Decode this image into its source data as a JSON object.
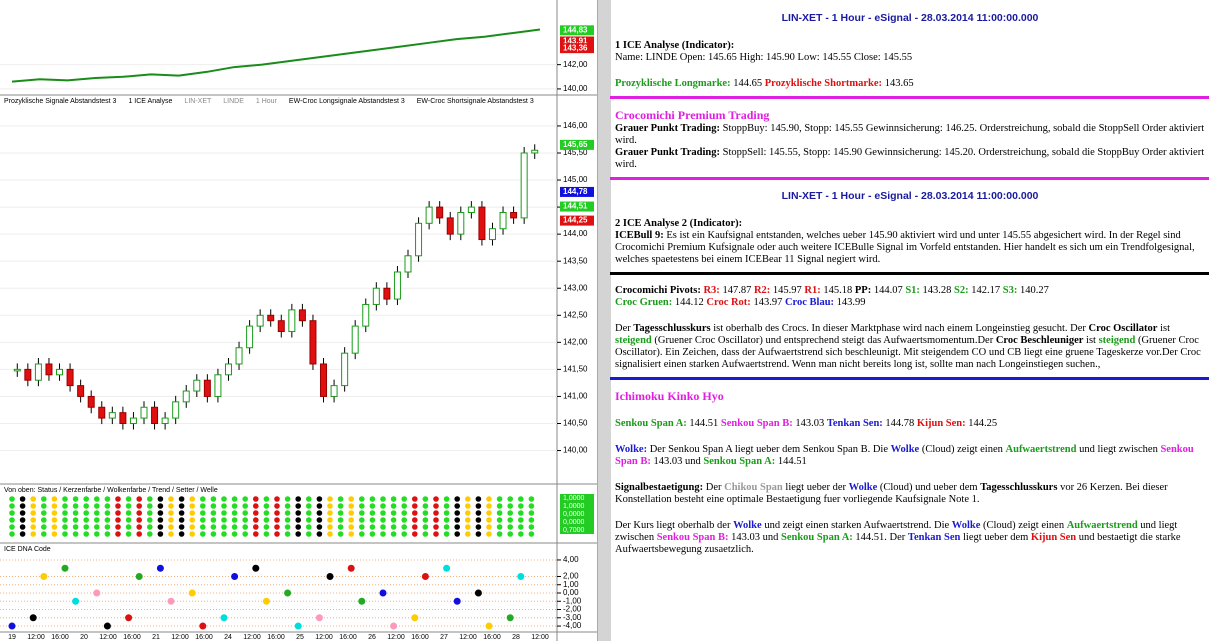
{
  "chart_data": [
    {
      "type": "line",
      "ylim": [
        139.58,
        147.33
      ],
      "yticks": [
        {
          "value": 142,
          "label": "142,00"
        },
        {
          "value": 140,
          "label": "140,00"
        }
      ],
      "values": [
        140.6,
        140.8,
        140.7,
        140.9,
        141.0,
        141.2,
        141.1,
        141.4,
        141.8,
        142.0,
        142.3,
        142.6,
        142.9,
        143.2,
        143.5,
        143.8,
        144.1,
        144.3,
        144.6,
        144.9
      ],
      "color": "#1a8c1a",
      "markers": [
        {
          "value": 144.83,
          "label": "144,83",
          "color": "#22cc22"
        },
        {
          "value": 143.91,
          "label": "143,91",
          "color": "#dd1111"
        },
        {
          "value": 143.36,
          "label": "143,36",
          "color": "#dd1111"
        }
      ]
    },
    {
      "type": "candle",
      "indicator_labels": [
        "Prozyklische Signale Abstandstest 3",
        "1 ICE Analyse",
        "LIN-XET",
        "LINDE",
        "1 Hour",
        "EW-Croc Longsignale Abstandstest 3",
        "EW-Croc Shortsignale Abstandstest 3"
      ],
      "ylim": [
        139.4,
        146.35
      ],
      "yticks": [
        {
          "value": 146,
          "label": "146,00"
        },
        {
          "value": 145.5,
          "label": "145,50"
        },
        {
          "value": 145,
          "label": "145,00"
        },
        {
          "value": 144.5,
          "label": "144,50"
        },
        {
          "value": 144,
          "label": "144,00"
        },
        {
          "value": 143.5,
          "label": "143,50"
        },
        {
          "value": 143,
          "label": "143,00"
        },
        {
          "value": 142.5,
          "label": "142,50"
        },
        {
          "value": 142,
          "label": "142,00"
        },
        {
          "value": 141.5,
          "label": "141,50"
        },
        {
          "value": 141,
          "label": "141,00"
        },
        {
          "value": 140.5,
          "label": "140,50"
        },
        {
          "value": 140,
          "label": "140,00"
        }
      ],
      "values": [
        141.5,
        141.3,
        141.6,
        141.4,
        141.5,
        141.2,
        141.0,
        140.8,
        140.6,
        140.7,
        140.5,
        140.6,
        140.8,
        140.5,
        140.6,
        140.9,
        141.1,
        141.3,
        141.0,
        141.4,
        141.6,
        141.9,
        142.3,
        142.5,
        142.4,
        142.2,
        142.6,
        142.4,
        141.6,
        141.0,
        141.2,
        141.8,
        142.3,
        142.7,
        143.0,
        142.8,
        143.3,
        143.6,
        144.2,
        144.5,
        144.3,
        144.0,
        144.4,
        144.5,
        143.9,
        144.1,
        144.4,
        144.3,
        145.5,
        145.55
      ],
      "markers": [
        {
          "value": 145.65,
          "label": "145,65",
          "color": "#22cc22"
        },
        {
          "value": 144.78,
          "label": "144,78",
          "color": "#1111dd"
        },
        {
          "value": 144.51,
          "label": "144,51",
          "color": "#22cc22"
        },
        {
          "value": 144.25,
          "label": "144,25",
          "color": "#dd1111"
        }
      ]
    },
    {
      "type": "status",
      "title": "Von oben: Status / Kerzenfarbe / Wolkenfarbe / Trend / Setter / Welle",
      "labels": [
        "1,0000",
        "1,0000",
        "0,0000",
        "0,0000",
        "0,7000"
      ]
    },
    {
      "type": "dna",
      "title": "ICE DNA Code",
      "ylim": [
        -4.6,
        4.6
      ],
      "yticks": [
        {
          "value": 4,
          "label": "4,00"
        },
        {
          "value": 2,
          "label": "2,00"
        },
        {
          "value": 1,
          "label": "1,00"
        },
        {
          "value": 0,
          "label": "0,00"
        },
        {
          "value": -1,
          "label": "-1,00"
        },
        {
          "value": -2,
          "label": "-2,00"
        },
        {
          "value": -3,
          "label": "-3,00"
        },
        {
          "value": -4,
          "label": "-4,00"
        }
      ],
      "x_labels": [
        "19",
        "12:00",
        "16:00",
        "20",
        "12:00",
        "16:00",
        "21",
        "12:00",
        "16:00",
        "24",
        "12:00",
        "16:00",
        "25",
        "12:00",
        "16:00",
        "26",
        "12:00",
        "16:00",
        "27",
        "12:00",
        "16:00",
        "28",
        "12:00"
      ]
    }
  ],
  "report": {
    "blocks": [
      {
        "kind": "header",
        "lines": [
          [
            {
              "text": "LIN-XET - 1 Hour - eSignal - 28.03.2014 11:00:00.000"
            }
          ]
        ]
      },
      {
        "kind": "text",
        "lines": [
          [
            {
              "text": "1 ICE Analyse (Indicator):",
              "style": "b"
            }
          ],
          [
            {
              "text": "Name: LINDE Open: 145.65 High: 145.90 Low: 145.55 Close: 145.55"
            }
          ]
        ]
      },
      {
        "kind": "text",
        "rule": "magenta",
        "lines": [
          [
            {
              "text": "Prozyklische Longmarke:",
              "style": "bg"
            },
            {
              "text": " 144.65 "
            },
            {
              "text": "Prozyklische Shortmarke:",
              "style": "br"
            },
            {
              "text": " 143.65"
            }
          ]
        ]
      },
      {
        "kind": "text",
        "rule": "magenta",
        "lines": [
          [
            {
              "text": "Crocomichi Premium Trading",
              "style": "tm"
            }
          ],
          [
            {
              "text": "Grauer Punkt Trading:",
              "style": "b"
            },
            {
              "text": " StoppBuy: 145.90, Stopp: 145.55 Gewinnsicherung: 146.25. Orderstreichung, sobald die StoppSell Order aktiviert wird."
            }
          ],
          [
            {
              "text": "Grauer Punkt Trading:",
              "style": "b"
            },
            {
              "text": " StoppSell: 145.55, Stopp: 145.90 Gewinnsicherung: 145.20. Orderstreichung, sobald die StoppBuy Order aktiviert wird."
            }
          ]
        ]
      },
      {
        "kind": "header",
        "lines": [
          [
            {
              "text": "LIN-XET - 1 Hour - eSignal - 28.03.2014 11:00:00.000"
            }
          ]
        ]
      },
      {
        "kind": "text",
        "rule": "black",
        "lines": [
          [
            {
              "text": "2 ICE Analyse 2 (Indicator):",
              "style": "b"
            }
          ],
          [
            {
              "text": "ICEBull 9:",
              "style": "b"
            },
            {
              "text": " Es ist ein Kaufsignal entstanden, welches ueber 145.90 aktiviert wird und unter 145.55 abgesichert wird. In der Regel sind Crocomichi Premium Kufsignale oder auch weitere ICEBulle Signal im Vorfeld entstanden. Hier handelt es sich um ein Trendfolgesignal, welches spaetestens bei einem ICEBear 11 Signal negiert wird."
            }
          ]
        ]
      },
      {
        "kind": "text",
        "lines": [
          [
            {
              "text": "Crocomichi Pivots:",
              "style": "b"
            },
            {
              "text": " "
            },
            {
              "text": "R3:",
              "style": "br"
            },
            {
              "text": " 147.87 "
            },
            {
              "text": "R2:",
              "style": "br"
            },
            {
              "text": " 145.97 "
            },
            {
              "text": "R1:",
              "style": "br"
            },
            {
              "text": " 145.18 "
            },
            {
              "text": "PP:",
              "style": "b"
            },
            {
              "text": " 144.07 "
            },
            {
              "text": "S1:",
              "style": "bg"
            },
            {
              "text": " 143.28 "
            },
            {
              "text": "S2:",
              "style": "bg"
            },
            {
              "text": " 142.17 "
            },
            {
              "text": "S3:",
              "style": "bg"
            },
            {
              "text": " 140.27"
            }
          ],
          [
            {
              "text": "Croc Gruen:",
              "style": "bg"
            },
            {
              "text": " 144.12 "
            },
            {
              "text": "Croc Rot:",
              "style": "br"
            },
            {
              "text": " 143.97 "
            },
            {
              "text": "Croc Blau:",
              "style": "bb"
            },
            {
              "text": " 143.99"
            }
          ]
        ]
      },
      {
        "kind": "text",
        "rule": "blue",
        "lines": [
          [
            {
              "text": "Der "
            },
            {
              "text": "Tagesschlusskurs",
              "style": "b"
            },
            {
              "text": " ist oberhalb des Crocs. In dieser Marktphase wird nach einem Longeinstieg gesucht. Der "
            },
            {
              "text": "Croc Oscillator",
              "style": "b"
            },
            {
              "text": " ist "
            },
            {
              "text": "steigend",
              "style": "bg"
            },
            {
              "text": " (Gruener Croc Oscillator) und entsprechend steigt das Aufwaertsmomentum.Der "
            },
            {
              "text": "Croc Beschleuniger",
              "style": "b"
            },
            {
              "text": " ist "
            },
            {
              "text": "steigend",
              "style": "bg"
            },
            {
              "text": " (Gruener Croc Oscillator). Ein Zeichen, dass der Aufwaertstrend sich beschleunigt. Mit steigendem CO und CB liegt eine gruene Tageskerze vor.Der Croc signalisiert einen starken Aufwaertstrend. Wenn man nicht bereits long ist, sollte man nach Longeinstiegen suchen.,"
            }
          ]
        ]
      },
      {
        "kind": "text",
        "lines": [
          [
            {
              "text": "Ichimoku Kinko Hyo",
              "style": "tm"
            }
          ]
        ]
      },
      {
        "kind": "text",
        "lines": [
          [
            {
              "text": "Senkou Span A:",
              "style": "bg"
            },
            {
              "text": " 144.51 "
            },
            {
              "text": "Senkou Span B:",
              "style": "bm"
            },
            {
              "text": " 143.03 "
            },
            {
              "text": "Tenkan Sen:",
              "style": "bb"
            },
            {
              "text": " 144.78 "
            },
            {
              "text": "Kijun Sen:",
              "style": "br"
            },
            {
              "text": " 144.25"
            }
          ]
        ]
      },
      {
        "kind": "text",
        "lines": [
          [
            {
              "text": "Wolke:",
              "style": "bb"
            },
            {
              "text": " Der Senkou Span A liegt ueber dem Senkou Span B. Die "
            },
            {
              "text": "Wolke",
              "style": "bb"
            },
            {
              "text": " (Cloud) zeigt einen "
            },
            {
              "text": "Aufwaertstrend",
              "style": "bg"
            },
            {
              "text": " und liegt zwischen "
            },
            {
              "text": "Senkou Span B:",
              "style": "bm"
            },
            {
              "text": " 143.03 und "
            },
            {
              "text": "Senkou Span A:",
              "style": "bg"
            },
            {
              "text": " 144.51"
            }
          ]
        ]
      },
      {
        "kind": "text",
        "lines": [
          [
            {
              "text": "Signalbestaetigung:",
              "style": "b"
            },
            {
              "text": " Der "
            },
            {
              "text": "Chikou Span",
              "style": "bgray"
            },
            {
              "text": " liegt ueber der "
            },
            {
              "text": "Wolke",
              "style": "bb"
            },
            {
              "text": " (Cloud) und ueber dem "
            },
            {
              "text": "Tagesschlusskurs",
              "style": "b"
            },
            {
              "text": " vor 26 Kerzen. Bei dieser Konstellation besteht eine optimale Bestaetigung fuer vorliegende Kaufsignale Note 1."
            }
          ]
        ]
      },
      {
        "kind": "text",
        "lines": [
          [
            {
              "text": "Der Kurs liegt oberhalb der "
            },
            {
              "text": "Wolke",
              "style": "bb"
            },
            {
              "text": " und zeigt einen starken Aufwaertstrend. Die "
            },
            {
              "text": "Wolke",
              "style": "bb"
            },
            {
              "text": " (Cloud) zeigt einen "
            },
            {
              "text": "Aufwaertstrend",
              "style": "bg"
            },
            {
              "text": " und liegt zwischen "
            },
            {
              "text": "Senkou Span B:",
              "style": "bm"
            },
            {
              "text": " 143.03 und "
            },
            {
              "text": "Senkou Span A:",
              "style": "bg"
            },
            {
              "text": " 144.51. Der "
            },
            {
              "text": "Tenkan Sen",
              "style": "bb"
            },
            {
              "text": " liegt ueber dem "
            },
            {
              "text": "Kijun Sen",
              "style": "br"
            },
            {
              "text": " und bestaetigt die starke Aufwaertsbewegung zusaetzlich."
            }
          ]
        ]
      }
    ]
  }
}
